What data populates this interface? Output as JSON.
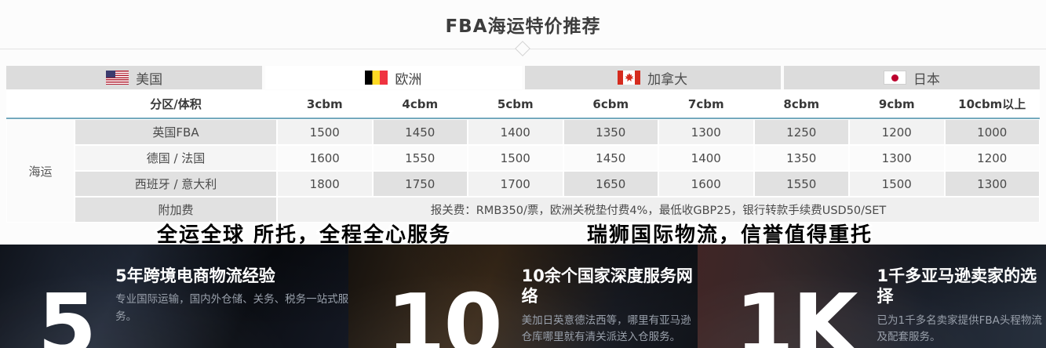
{
  "title": "FBA海运特价推荐",
  "tabs": [
    {
      "label": "美国",
      "flag": "us-flag",
      "active": false
    },
    {
      "label": "欧洲",
      "flag": "belgium-flag",
      "active": true
    },
    {
      "label": "加拿大",
      "flag": "canada-flag",
      "active": false
    },
    {
      "label": "日本",
      "flag": "japan-flag",
      "active": false
    }
  ],
  "table": {
    "zone_header": "分区/体积",
    "columns": [
      "3cbm",
      "4cbm",
      "5cbm",
      "6cbm",
      "7cbm",
      "8cbm",
      "9cbm",
      "10cbm以上"
    ],
    "category": "海运",
    "rows": [
      {
        "label": "英国FBA",
        "values": [
          "1500",
          "1450",
          "1400",
          "1350",
          "1300",
          "1250",
          "1200",
          "1000"
        ]
      },
      {
        "label": "德国 / 法国",
        "values": [
          "1600",
          "1550",
          "1500",
          "1450",
          "1400",
          "1350",
          "1300",
          "1200"
        ]
      },
      {
        "label": "西班牙 / 意大利",
        "values": [
          "1800",
          "1750",
          "1700",
          "1650",
          "1600",
          "1550",
          "1500",
          "1300"
        ]
      }
    ],
    "surcharge": {
      "label": "附加费",
      "text": "报关费：RMB350/票，欧洲关税垫付费4%，最低收GBP25，银行转款手续费USD50/SET"
    }
  },
  "slogans": {
    "left": "全运全球 所托，全程全心服务",
    "right": "瑞狮国际物流，信誉值得重托"
  },
  "stats": [
    {
      "number": "5",
      "heading": "5年跨境电商物流经验",
      "body": "专业国际运输，国内外仓储、关务、税务一站式服务。"
    },
    {
      "number": "10",
      "heading": "10余个国家深度服务网络",
      "body": "美加日英意德法西等，哪里有亚马逊仓库哪里就有清关派送入仓服务。"
    },
    {
      "number": "1K",
      "heading": "1千多亚马逊卖家的选择",
      "body": "已为1千多名卖家提供FBA头程物流及配套服务。"
    }
  ],
  "colors": {
    "accent_border": "#74a9bd",
    "tab_inactive_bg": "#dcdcdc",
    "tab_active_bg": "#ffffff",
    "cell_dark": "#e1e1e1",
    "cell_light": "#f2f2f2",
    "flag_us_blue": "#3c3b6e",
    "flag_red": "#d52b1e",
    "flag_be_yellow": "#fdda24",
    "flag_jp_red": "#bc002d",
    "stats_heading": "#ffffff",
    "stats_body_text": "#99a0ab"
  }
}
